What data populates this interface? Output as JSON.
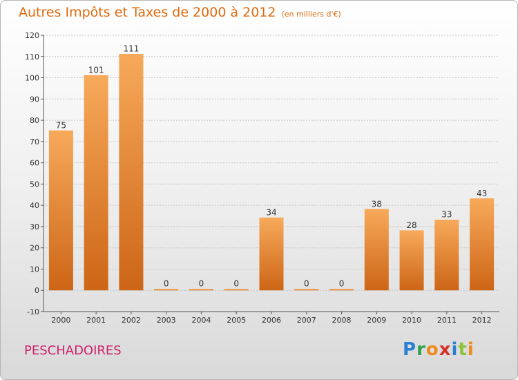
{
  "title": "Autres Impôts et Taxes de 2000 à 2012",
  "subtitle": "(en milliers d'€)",
  "commune": "PESCHADOIRES",
  "logo": {
    "letters": [
      "P",
      "r",
      "o",
      "x",
      "i",
      "t",
      "i"
    ],
    "colors": [
      "#2a7fd1",
      "#2aa44a",
      "#f08a1c",
      "#d6322a",
      "#2a7fd1",
      "#8ac43a",
      "#f08a1c"
    ]
  },
  "colors": {
    "title": "#e06a0e",
    "commune": "#cc2266",
    "bar_light": "#f7a95a",
    "bar_dark": "#cd6516",
    "grid": "#c4c4c4"
  },
  "chart_data": {
    "type": "bar",
    "categories": [
      "2000",
      "2001",
      "2002",
      "2003",
      "2004",
      "2005",
      "2006",
      "2007",
      "2008",
      "2009",
      "2010",
      "2011",
      "2012"
    ],
    "values": [
      75,
      101,
      111,
      0,
      0,
      0,
      34,
      0,
      0,
      38,
      28,
      33,
      43
    ],
    "ylim": [
      -10,
      120
    ],
    "yticks": [
      -10,
      0,
      10,
      20,
      30,
      40,
      50,
      60,
      70,
      80,
      90,
      100,
      110,
      120
    ],
    "grid": true
  }
}
